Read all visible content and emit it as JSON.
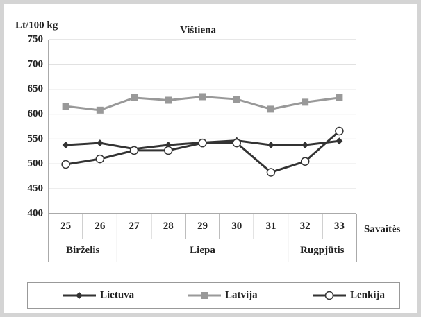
{
  "chart_data": {
    "type": "line",
    "title": "Vištiena",
    "y_label": "Lt/100 kg",
    "x_label": "Savaitės",
    "categories": [
      "25",
      "26",
      "27",
      "28",
      "29",
      "30",
      "31",
      "32",
      "33"
    ],
    "groups": [
      {
        "label": "Birželis",
        "span": 2
      },
      {
        "label": "Liepa",
        "span": 5
      },
      {
        "label": "Rugpjūtis",
        "span": 2
      }
    ],
    "series": [
      {
        "name": "Lietuva",
        "color": "#333333",
        "marker": "diamond",
        "values": [
          538,
          542,
          530,
          538,
          543,
          547,
          538,
          538,
          546
        ]
      },
      {
        "name": "Latvija",
        "color": "#999999",
        "marker": "square",
        "values": [
          616,
          608,
          633,
          628,
          635,
          630,
          610,
          624,
          633
        ]
      },
      {
        "name": "Lenkija",
        "color": "#333333",
        "marker": "circle",
        "values": [
          499,
          510,
          527,
          527,
          542,
          542,
          483,
          505,
          566
        ]
      }
    ],
    "ylim": [
      400,
      750
    ],
    "yticks": [
      400,
      450,
      500,
      550,
      600,
      650,
      700,
      750
    ],
    "grid": true,
    "legend": "bottom"
  }
}
